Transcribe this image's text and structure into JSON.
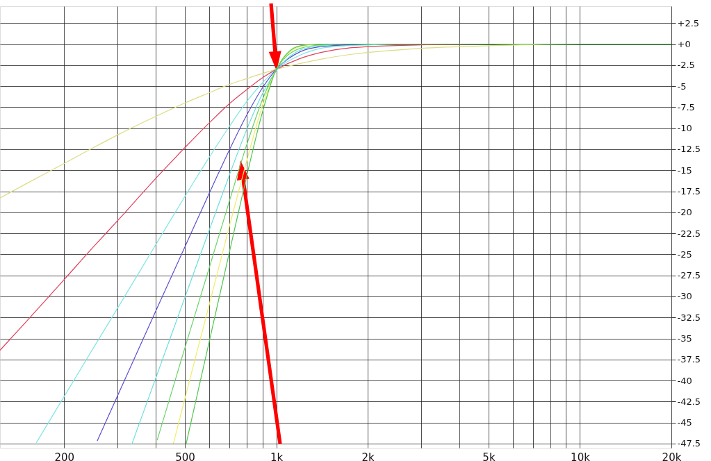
{
  "chart_data": {
    "type": "line",
    "log": "x",
    "xlim": [
      123,
      20000
    ],
    "ylim": [
      -48,
      4.5
    ],
    "xticks": [
      {
        "value": 200,
        "label": "200"
      },
      {
        "value": 300,
        "label": null
      },
      {
        "value": 400,
        "label": null
      },
      {
        "value": 500,
        "label": "500"
      },
      {
        "value": 600,
        "label": null
      },
      {
        "value": 700,
        "label": null
      },
      {
        "value": 800,
        "label": null
      },
      {
        "value": 900,
        "label": null
      },
      {
        "value": 1000,
        "label": "1k"
      },
      {
        "value": 2000,
        "label": "2k"
      },
      {
        "value": 3000,
        "label": null
      },
      {
        "value": 4000,
        "label": null
      },
      {
        "value": 5000,
        "label": "5k"
      },
      {
        "value": 6000,
        "label": null
      },
      {
        "value": 7000,
        "label": null
      },
      {
        "value": 8000,
        "label": null
      },
      {
        "value": 9000,
        "label": null
      },
      {
        "value": 10000,
        "label": "10k"
      },
      {
        "value": 20000,
        "label": "20k"
      }
    ],
    "yticks": [
      {
        "value": 2.5,
        "label": "+2.5"
      },
      {
        "value": 0,
        "label": "+0"
      },
      -2.5,
      -5,
      -7.5,
      -10,
      -12.5,
      -15,
      -17.5,
      -20,
      -22.5,
      -25,
      -27.5,
      -30,
      -32.5,
      -35,
      -37.5,
      -40,
      -42.5,
      -45,
      -47.5
    ],
    "grid": true,
    "legend": false,
    "line_style": "solid",
    "marker": "none",
    "series": [
      {
        "color": "#dcdc82",
        "x": [
          123,
          150,
          200,
          250,
          300,
          400,
          500,
          600,
          700,
          800,
          900,
          1000,
          1200,
          1400,
          1700,
          2000,
          3000,
          5000,
          10000,
          20000
        ],
        "values": [
          -18.3,
          -16.6,
          -14.2,
          -12.3,
          -10.8,
          -8.6,
          -7.0,
          -5.8,
          -4.8,
          -4.1,
          -3.5,
          -3.0,
          -2.3,
          -1.8,
          -1.3,
          -1.0,
          -0.5,
          -0.2,
          0,
          0
        ]
      },
      {
        "color": "#e0405e",
        "x": [
          123,
          150,
          200,
          250,
          300,
          400,
          500,
          600,
          700,
          800,
          900,
          1000,
          1200,
          1400,
          1700,
          2000,
          3000,
          5000
        ],
        "values": [
          -36.4,
          -33.0,
          -28.0,
          -24.1,
          -21.0,
          -16.0,
          -12.3,
          -9.4,
          -7.1,
          -5.4,
          -4.0,
          -3.0,
          -1.7,
          -1.0,
          -0.5,
          -0.3,
          -0.1,
          0
        ]
      },
      {
        "color": "#7ee6e6",
        "x": [
          162,
          200,
          250,
          300,
          400,
          500,
          600,
          700,
          800,
          900,
          1000,
          1200,
          1400,
          1700,
          2000,
          3000,
          20000
        ],
        "values": [
          -47.4,
          -41.9,
          -36.1,
          -31.4,
          -23.9,
          -18.1,
          -13.5,
          -9.8,
          -6.8,
          -4.6,
          -3.0,
          -1.3,
          -0.5,
          -0.2,
          -0.1,
          0,
          0
        ]
      },
      {
        "color": "#5a4ed0",
        "x": [
          257,
          300,
          400,
          500,
          600,
          700,
          800,
          900,
          1000,
          1200,
          1400,
          1700,
          2000,
          20000
        ],
        "values": [
          -47.2,
          -41.8,
          -31.8,
          -24.1,
          -17.8,
          -12.6,
          -8.4,
          -5.2,
          -3.0,
          -0.9,
          -0.3,
          -0.1,
          0,
          0
        ]
      },
      {
        "color": "#6adede",
        "x": [
          334,
          400,
          500,
          600,
          700,
          800,
          900,
          1200,
          1400,
          1700,
          2000,
          20000
        ],
        "values": [
          -47.6,
          -39.8,
          -30.1,
          -22.2,
          -15.6,
          -10.1,
          -5.9,
          -0.7,
          -0.2,
          0,
          0,
          0
        ]
      },
      {
        "color": "#66d466",
        "x": [
          405,
          500,
          600,
          700,
          800,
          900,
          1000,
          1200,
          1400,
          1700,
          2000,
          20000
        ],
        "values": [
          -47.1,
          -36.1,
          -26.7,
          -18.7,
          -11.9,
          -6.6,
          -3.0,
          -0.5,
          -0.1,
          0,
          0,
          0
        ]
      },
      {
        "color": "#eeee66",
        "x": [
          458,
          500,
          600,
          700,
          800,
          900,
          1000,
          1200,
          1400,
          1700,
          2000,
          20000
        ],
        "values": [
          -47.5,
          -42.1,
          -31.1,
          -21.7,
          -13.8,
          -7.3,
          -3.0,
          -0.3,
          0,
          0,
          0,
          0
        ]
      },
      {
        "color": "#4ec84e",
        "x": [
          504,
          600,
          700,
          800,
          900,
          1000,
          1200,
          1400,
          1700,
          2000,
          20000
        ],
        "values": [
          -47.6,
          -35.5,
          -24.8,
          -15.6,
          -8.1,
          -3.0,
          -0.2,
          0,
          0,
          0,
          0
        ]
      }
    ]
  }
}
